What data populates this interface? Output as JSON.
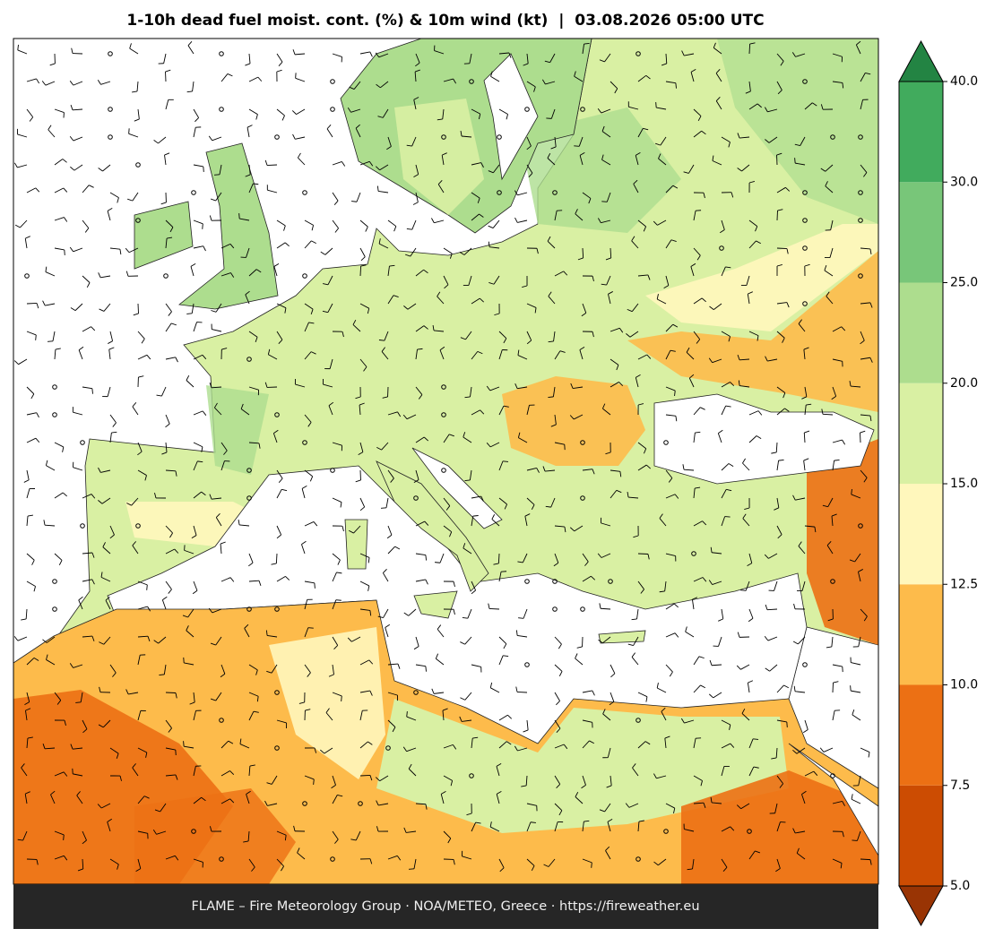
{
  "header": {
    "title": "1-10h dead fuel moist. cont. (%) & 10m wind (kt)  |  03.08.2026 05:00 UTC"
  },
  "footer": {
    "text": "FLAME – Fire Meteorology Group · NOA/METEO, Greece · https://fireweather.eu"
  },
  "colorbar": {
    "ticks": [
      {
        "value": 5,
        "label": "5.0"
      },
      {
        "value": 7.5,
        "label": "7.5"
      },
      {
        "value": 10,
        "label": "10.0"
      },
      {
        "value": 12.5,
        "label": "12.5"
      },
      {
        "value": 15,
        "label": "15.0"
      },
      {
        "value": 20,
        "label": "20.0"
      },
      {
        "value": 25,
        "label": "25.0"
      },
      {
        "value": 30,
        "label": "30.0"
      },
      {
        "value": 40,
        "label": "40.0"
      }
    ],
    "colors": [
      "#cc4c02",
      "#ec7014",
      "#fdbb4b",
      "#fff7bc",
      "#d9f0a3",
      "#addd8e",
      "#78c679",
      "#41ab5d"
    ],
    "under_color": "#993404",
    "over_color": "#238443"
  }
}
